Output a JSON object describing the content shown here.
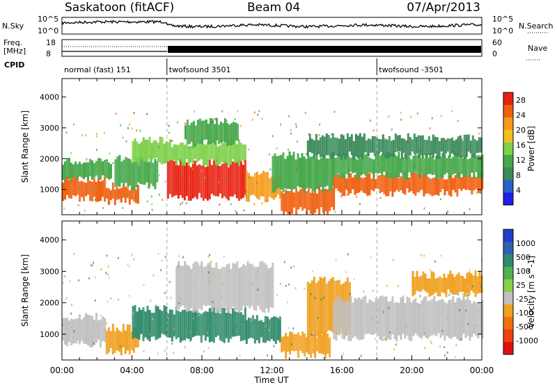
{
  "header": {
    "title_left": "Saskatoon (fitACF)",
    "title_center": "Beam 04",
    "title_right": "07/Apr/2013"
  },
  "status_panels": {
    "nsky_label": "N.Sky",
    "nsky_ticks": [
      "10^5",
      "10^0"
    ],
    "nsearch_label": "N.Search",
    "freq_label_1": "Freq.",
    "freq_label_2": "[MHz]",
    "freq_ticks": [
      "18",
      "8"
    ],
    "nave_label": "Nave",
    "nave_ticks": [
      "60",
      "0"
    ],
    "cpid_label": "CPID",
    "cpid_segments": [
      {
        "label": "normal (fast) 151",
        "start_hour": 0,
        "end_hour": 6
      },
      {
        "label": "twofsound 3501",
        "start_hour": 6,
        "end_hour": 18
      },
      {
        "label": "twofsound -3501",
        "start_hour": 18,
        "end_hour": 24
      }
    ]
  },
  "colors": {
    "power_scale": [
      "#1f1fe8",
      "#2a60c8",
      "#3a8a5a",
      "#45a84a",
      "#7ed04a",
      "#f0c020",
      "#f59a1a",
      "#f06010",
      "#e82010"
    ],
    "velocity_scale": [
      "#1f3fc8",
      "#3060b0",
      "#2f8a6a",
      "#50b050",
      "#88d048",
      "#c0c0c0",
      "#f0a020",
      "#f07010",
      "#ee4010",
      "#e01010"
    ]
  },
  "chart_data": [
    {
      "type": "heatmap",
      "title": "Power",
      "xlabel": "Time UT",
      "ylabel": "Slant Range [km]",
      "xlim_hours": [
        0,
        24
      ],
      "ylim_km": [
        180,
        4600
      ],
      "x_ticks": [
        "00:00",
        "04:00",
        "08:00",
        "12:00",
        "16:00",
        "20:00",
        "00:00"
      ],
      "y_ticks": [
        1000,
        2000,
        3000,
        4000
      ],
      "colorbar": {
        "label": "Power [dB]",
        "ticks": [
          "4",
          "8",
          "12",
          "16",
          "20",
          "24",
          "28"
        ],
        "range": [
          0,
          30
        ]
      },
      "regions": [
        {
          "t0": 0.0,
          "t1": 2.5,
          "r0": 700,
          "r1": 1350,
          "value": 26
        },
        {
          "t0": 0.0,
          "t1": 2.8,
          "r0": 1350,
          "r1": 1900,
          "value": 12
        },
        {
          "t0": 2.5,
          "t1": 4.3,
          "r0": 600,
          "r1": 1100,
          "value": 24
        },
        {
          "t0": 3.0,
          "t1": 5.5,
          "r0": 1100,
          "r1": 2000,
          "value": 10
        },
        {
          "t0": 4.0,
          "t1": 6.0,
          "r0": 1900,
          "r1": 2600,
          "value": 14
        },
        {
          "t0": 6.0,
          "t1": 10.5,
          "r0": 750,
          "r1": 1850,
          "value": 28
        },
        {
          "t0": 6.0,
          "t1": 10.5,
          "r0": 1850,
          "r1": 2500,
          "value": 16
        },
        {
          "t0": 7.0,
          "t1": 10.0,
          "r0": 2500,
          "r1": 3200,
          "value": 10
        },
        {
          "t0": 10.5,
          "t1": 12.5,
          "r0": 700,
          "r1": 1500,
          "value": 22
        },
        {
          "t0": 12.5,
          "t1": 15.5,
          "r0": 300,
          "r1": 1000,
          "value": 26
        },
        {
          "t0": 12.0,
          "t1": 15.5,
          "r0": 1000,
          "r1": 2100,
          "value": 12
        },
        {
          "t0": 15.5,
          "t1": 24.0,
          "r0": 900,
          "r1": 1450,
          "value": 24
        },
        {
          "t0": 15.5,
          "t1": 24.0,
          "r0": 1450,
          "r1": 2100,
          "value": 12
        },
        {
          "t0": 14.0,
          "t1": 24.0,
          "r0": 2100,
          "r1": 2700,
          "value": 7
        }
      ]
    },
    {
      "type": "heatmap",
      "title": "Velocity",
      "xlabel": "Time UT",
      "ylabel": "Slant Range [km]",
      "xlim_hours": [
        0,
        24
      ],
      "ylim_km": [
        180,
        4600
      ],
      "x_ticks": [
        "00:00",
        "04:00",
        "08:00",
        "12:00",
        "16:00",
        "20:00",
        "00:00"
      ],
      "y_ticks": [
        1000,
        2000,
        3000,
        4000
      ],
      "colorbar": {
        "label": "Velocity [m s^-1]",
        "ticks": [
          "1000",
          "500",
          "100",
          "25",
          "-25",
          "-100",
          "-500",
          "-1000"
        ]
      },
      "regions": [
        {
          "t0": 0.0,
          "t1": 2.5,
          "r0": 700,
          "r1": 1550,
          "value": 0
        },
        {
          "t0": 2.5,
          "t1": 4.3,
          "r0": 450,
          "r1": 1200,
          "value": -150
        },
        {
          "t0": 4.0,
          "t1": 6.0,
          "r0": 900,
          "r1": 1800,
          "value": 200
        },
        {
          "t0": 6.0,
          "t1": 10.5,
          "r0": 850,
          "r1": 1750,
          "value": 150
        },
        {
          "t0": 6.5,
          "t1": 12.0,
          "r0": 1800,
          "r1": 3200,
          "value": 0
        },
        {
          "t0": 10.5,
          "t1": 12.5,
          "r0": 800,
          "r1": 1500,
          "value": 120
        },
        {
          "t0": 12.5,
          "t1": 15.3,
          "r0": 350,
          "r1": 1000,
          "value": -200
        },
        {
          "t0": 14.0,
          "t1": 16.5,
          "r0": 1000,
          "r1": 2700,
          "value": -300
        },
        {
          "t0": 15.5,
          "t1": 24.0,
          "r0": 900,
          "r1": 2100,
          "value": 0
        },
        {
          "t0": 20.0,
          "t1": 24.0,
          "r0": 2300,
          "r1": 2900,
          "value": -150
        }
      ]
    }
  ]
}
